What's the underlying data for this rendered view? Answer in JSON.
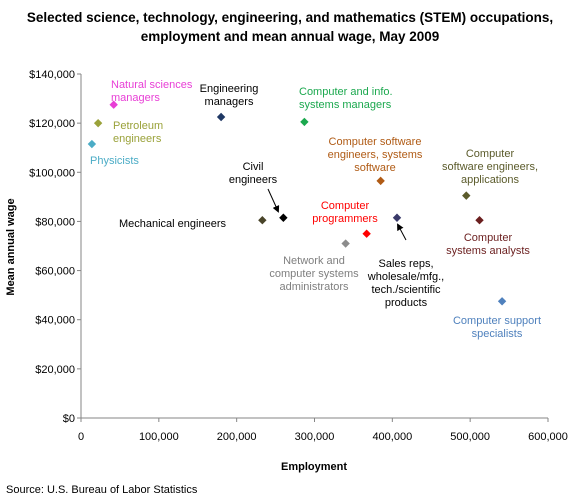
{
  "chart_data": {
    "type": "scatter",
    "title": [
      "Selected science, technology, engineering, and mathematics (STEM) occupations,",
      "employment and mean annual wage, May 2009"
    ],
    "xlabel": "Employment",
    "ylabel": "Mean annual wage",
    "xlim": [
      0,
      600000
    ],
    "ylim": [
      0,
      140000
    ],
    "x_ticks": [
      0,
      100000,
      200000,
      300000,
      400000,
      500000,
      600000
    ],
    "x_tick_labels": [
      "0",
      "100,000",
      "200,000",
      "300,000",
      "400,000",
      "500,000",
      "600,000"
    ],
    "y_ticks": [
      0,
      20000,
      40000,
      60000,
      80000,
      100000,
      120000,
      140000
    ],
    "y_tick_labels": [
      "$0",
      "$20,000",
      "$40,000",
      "$60,000",
      "$80,000",
      "$100,000",
      "$120,000",
      "$140,000"
    ],
    "grid": false,
    "source": "Source: U.S. Bureau of Labor Statistics",
    "points": [
      {
        "label": [
          "Physicists"
        ],
        "x": 14000,
        "y": 111500,
        "color": "#4bacc6"
      },
      {
        "label": [
          "Petroleum",
          "engineers"
        ],
        "x": 22000,
        "y": 120000,
        "color": "#9aa23a"
      },
      {
        "label": [
          "Natural sciences",
          "managers"
        ],
        "x": 42000,
        "y": 127500,
        "color": "#e83ed6"
      },
      {
        "label": [
          "Engineering",
          "managers"
        ],
        "x": 180000,
        "y": 122500,
        "color": "#1f3864"
      },
      {
        "label": [
          "Computer and info.",
          "systems managers"
        ],
        "x": 287000,
        "y": 120500,
        "color": "#1ba84e"
      },
      {
        "label": [
          "Mechanical engineers"
        ],
        "x": 233000,
        "y": 80500,
        "color": "#494429"
      },
      {
        "label": [
          "Civil",
          "engineers"
        ],
        "x": 260000,
        "y": 81500,
        "color": "#000000"
      },
      {
        "label": [
          "Network and",
          "computer systems",
          "administrators"
        ],
        "x": 340000,
        "y": 71000,
        "color": "#8c8c8c"
      },
      {
        "label": [
          "Computer",
          "programmers"
        ],
        "x": 367000,
        "y": 75000,
        "color": "#ff0000"
      },
      {
        "label": [
          "Computer software",
          "engineers, systems",
          "software"
        ],
        "x": 385000,
        "y": 96500,
        "color": "#b05b15"
      },
      {
        "label": [
          "Sales reps,",
          "wholesale/mfg.,",
          "tech./scientific",
          "products"
        ],
        "x": 406000,
        "y": 81500,
        "color": "#3a3a6a"
      },
      {
        "label": [
          "Computer",
          "software engineers,",
          "applications"
        ],
        "x": 495000,
        "y": 90500,
        "color": "#5b5b2b"
      },
      {
        "label": [
          "Computer",
          "systems analysts"
        ],
        "x": 512000,
        "y": 80500,
        "color": "#6b1f1f"
      },
      {
        "label": [
          "Computer support",
          "specialists"
        ],
        "x": 541000,
        "y": 47500,
        "color": "#4f81bd"
      }
    ]
  }
}
